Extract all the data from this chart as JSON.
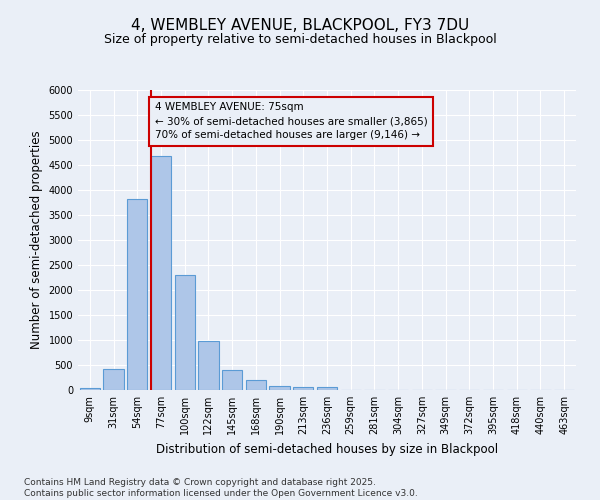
{
  "title1": "4, WEMBLEY AVENUE, BLACKPOOL, FY3 7DU",
  "title2": "Size of property relative to semi-detached houses in Blackpool",
  "xlabel": "Distribution of semi-detached houses by size in Blackpool",
  "ylabel": "Number of semi-detached properties",
  "categories": [
    "9sqm",
    "31sqm",
    "54sqm",
    "77sqm",
    "100sqm",
    "122sqm",
    "145sqm",
    "168sqm",
    "190sqm",
    "213sqm",
    "236sqm",
    "259sqm",
    "281sqm",
    "304sqm",
    "327sqm",
    "349sqm",
    "372sqm",
    "395sqm",
    "418sqm",
    "440sqm",
    "463sqm"
  ],
  "values": [
    50,
    430,
    3820,
    4680,
    2300,
    980,
    400,
    200,
    80,
    60,
    60,
    0,
    0,
    0,
    0,
    0,
    0,
    0,
    0,
    0,
    0
  ],
  "bar_color": "#aec6e8",
  "bar_edge_color": "#5b9bd5",
  "property_label": "4 WEMBLEY AVENUE: 75sqm",
  "smaller_pct": 30,
  "smaller_count": "3,865",
  "larger_pct": 70,
  "larger_count": "9,146",
  "vline_color": "#cc0000",
  "ylim": [
    0,
    6000
  ],
  "yticks": [
    0,
    500,
    1000,
    1500,
    2000,
    2500,
    3000,
    3500,
    4000,
    4500,
    5000,
    5500,
    6000
  ],
  "footnote": "Contains HM Land Registry data © Crown copyright and database right 2025.\nContains public sector information licensed under the Open Government Licence v3.0.",
  "bg_color": "#eaeff7",
  "grid_color": "#ffffff",
  "title_fontsize": 11,
  "subtitle_fontsize": 9,
  "label_fontsize": 8.5,
  "tick_fontsize": 7,
  "annot_fontsize": 7.5,
  "footnote_fontsize": 6.5
}
